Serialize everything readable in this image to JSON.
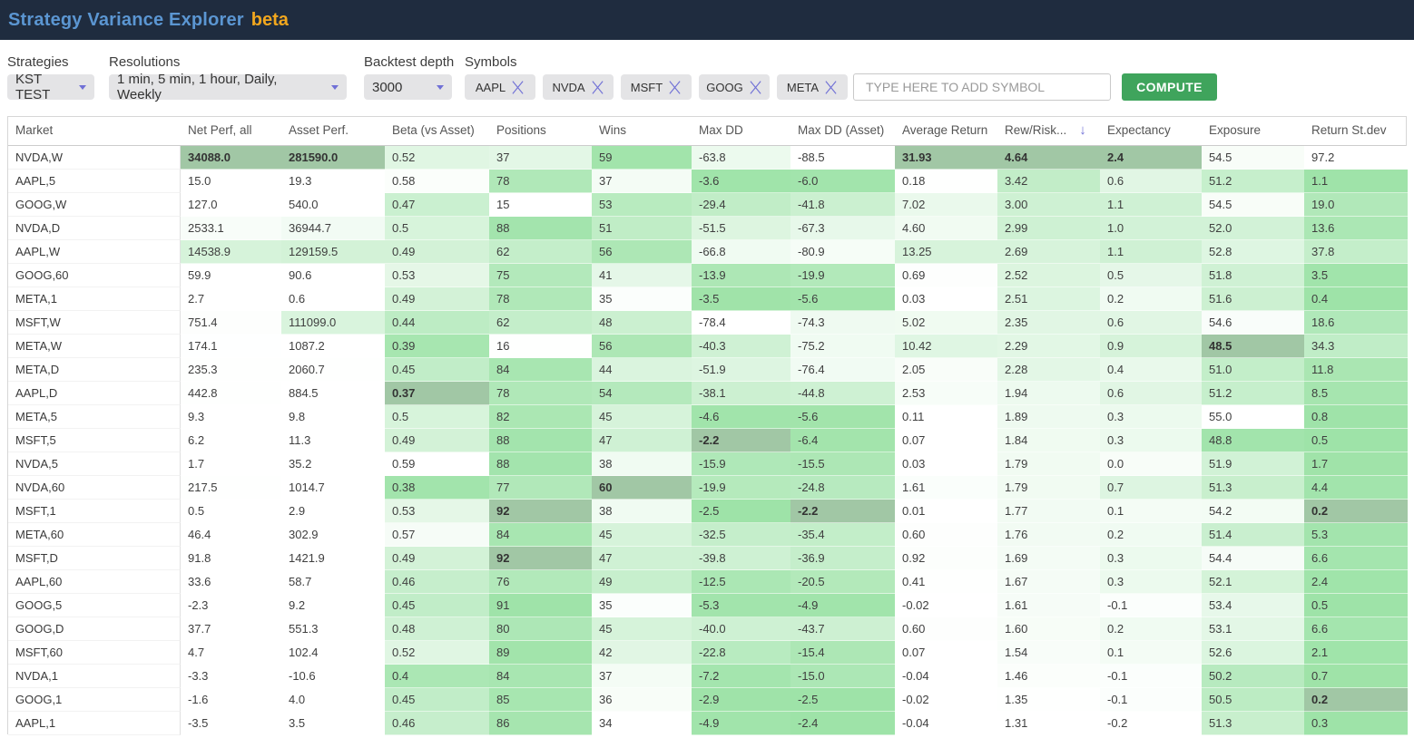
{
  "header": {
    "title": "Strategy Variance Explorer",
    "badge": "beta"
  },
  "controls": {
    "strategies_label": "Strategies",
    "strategies_value": "KST TEST",
    "resolutions_label": "Resolutions",
    "resolutions_value": "1 min, 5 min, 1 hour, Daily, Weekly",
    "backtest_label": "Backtest depth",
    "backtest_value": "3000",
    "symbols_label": "Symbols",
    "symbols": [
      "AAPL",
      "NVDA",
      "MSFT",
      "GOOG",
      "META"
    ],
    "add_symbol_placeholder": "TYPE HERE TO ADD SYMBOL",
    "compute_label": "COMPUTE"
  },
  "colors": {
    "topbar_bg": "#1f2c3f",
    "title_blue": "#5b96d2",
    "badge_orange": "#f2a71e",
    "accent_purple": "#7070d6",
    "compute_green": "#3fa45c",
    "heat_green_max": "#9ee3a8",
    "best_highlight": "#a1c7a5"
  },
  "table": {
    "columns": [
      {
        "key": "market",
        "label": "Market"
      },
      {
        "key": "net_perf",
        "label": "Net Perf, all",
        "better": "high"
      },
      {
        "key": "asset_perf",
        "label": "Asset Perf.",
        "better": "high"
      },
      {
        "key": "beta",
        "label": "Beta (vs Asset)",
        "better": "low"
      },
      {
        "key": "positions",
        "label": "Positions",
        "better": "high"
      },
      {
        "key": "wins",
        "label": "Wins",
        "better": "high"
      },
      {
        "key": "max_dd",
        "label": "Max DD",
        "better": "high"
      },
      {
        "key": "max_dd_asset",
        "label": "Max DD (Asset)",
        "better": "high"
      },
      {
        "key": "avg_return",
        "label": "Average Return",
        "better": "high"
      },
      {
        "key": "rew_risk",
        "label": "Rew/Risk...",
        "better": "high",
        "sorted": "desc"
      },
      {
        "key": "expectancy",
        "label": "Expectancy",
        "better": "high"
      },
      {
        "key": "exposure",
        "label": "Exposure",
        "better": "low"
      },
      {
        "key": "stdev",
        "label": "Return St.dev",
        "better": "low"
      }
    ],
    "rows": [
      {
        "market": "NVDA,W",
        "cells": [
          "34088.0",
          "281590.0",
          "0.52",
          "37",
          "59",
          "-63.8",
          "-88.5",
          "31.93",
          "4.64",
          "2.4",
          "54.5",
          "97.2"
        ]
      },
      {
        "market": "AAPL,5",
        "cells": [
          "15.0",
          "19.3",
          "0.58",
          "78",
          "37",
          "-3.6",
          "-6.0",
          "0.18",
          "3.42",
          "0.6",
          "51.2",
          "1.1"
        ]
      },
      {
        "market": "GOOG,W",
        "cells": [
          "127.0",
          "540.0",
          "0.47",
          "15",
          "53",
          "-29.4",
          "-41.8",
          "7.02",
          "3.00",
          "1.1",
          "54.5",
          "19.0"
        ]
      },
      {
        "market": "NVDA,D",
        "cells": [
          "2533.1",
          "36944.7",
          "0.5",
          "88",
          "51",
          "-51.5",
          "-67.3",
          "4.60",
          "2.99",
          "1.0",
          "52.0",
          "13.6"
        ]
      },
      {
        "market": "AAPL,W",
        "cells": [
          "14538.9",
          "129159.5",
          "0.49",
          "62",
          "56",
          "-66.8",
          "-80.9",
          "13.25",
          "2.69",
          "1.1",
          "52.8",
          "37.8"
        ]
      },
      {
        "market": "GOOG,60",
        "cells": [
          "59.9",
          "90.6",
          "0.53",
          "75",
          "41",
          "-13.9",
          "-19.9",
          "0.69",
          "2.52",
          "0.5",
          "51.8",
          "3.5"
        ]
      },
      {
        "market": "META,1",
        "cells": [
          "2.7",
          "0.6",
          "0.49",
          "78",
          "35",
          "-3.5",
          "-5.6",
          "0.03",
          "2.51",
          "0.2",
          "51.6",
          "0.4"
        ]
      },
      {
        "market": "MSFT,W",
        "cells": [
          "751.4",
          "111099.0",
          "0.44",
          "62",
          "48",
          "-78.4",
          "-74.3",
          "5.02",
          "2.35",
          "0.6",
          "54.6",
          "18.6"
        ]
      },
      {
        "market": "META,W",
        "cells": [
          "174.1",
          "1087.2",
          "0.39",
          "16",
          "56",
          "-40.3",
          "-75.2",
          "10.42",
          "2.29",
          "0.9",
          "48.5",
          "34.3"
        ]
      },
      {
        "market": "META,D",
        "cells": [
          "235.3",
          "2060.7",
          "0.45",
          "84",
          "44",
          "-51.9",
          "-76.4",
          "2.05",
          "2.28",
          "0.4",
          "51.0",
          "11.8"
        ]
      },
      {
        "market": "AAPL,D",
        "cells": [
          "442.8",
          "884.5",
          "0.37",
          "78",
          "54",
          "-38.1",
          "-44.8",
          "2.53",
          "1.94",
          "0.6",
          "51.2",
          "8.5"
        ]
      },
      {
        "market": "META,5",
        "cells": [
          "9.3",
          "9.8",
          "0.5",
          "82",
          "45",
          "-4.6",
          "-5.6",
          "0.11",
          "1.89",
          "0.3",
          "55.0",
          "0.8"
        ]
      },
      {
        "market": "MSFT,5",
        "cells": [
          "6.2",
          "11.3",
          "0.49",
          "88",
          "47",
          "-2.2",
          "-6.4",
          "0.07",
          "1.84",
          "0.3",
          "48.8",
          "0.5"
        ]
      },
      {
        "market": "NVDA,5",
        "cells": [
          "1.7",
          "35.2",
          "0.59",
          "88",
          "38",
          "-15.9",
          "-15.5",
          "0.03",
          "1.79",
          "0.0",
          "51.9",
          "1.7"
        ]
      },
      {
        "market": "NVDA,60",
        "cells": [
          "217.5",
          "1014.7",
          "0.38",
          "77",
          "60",
          "-19.9",
          "-24.8",
          "1.61",
          "1.79",
          "0.7",
          "51.3",
          "4.4"
        ]
      },
      {
        "market": "MSFT,1",
        "cells": [
          "0.5",
          "2.9",
          "0.53",
          "92",
          "38",
          "-2.5",
          "-2.2",
          "0.01",
          "1.77",
          "0.1",
          "54.2",
          "0.2"
        ]
      },
      {
        "market": "META,60",
        "cells": [
          "46.4",
          "302.9",
          "0.57",
          "84",
          "45",
          "-32.5",
          "-35.4",
          "0.60",
          "1.76",
          "0.2",
          "51.4",
          "5.3"
        ]
      },
      {
        "market": "MSFT,D",
        "cells": [
          "91.8",
          "1421.9",
          "0.49",
          "92",
          "47",
          "-39.8",
          "-36.9",
          "0.92",
          "1.69",
          "0.3",
          "54.4",
          "6.6"
        ]
      },
      {
        "market": "AAPL,60",
        "cells": [
          "33.6",
          "58.7",
          "0.46",
          "76",
          "49",
          "-12.5",
          "-20.5",
          "0.41",
          "1.67",
          "0.3",
          "52.1",
          "2.4"
        ]
      },
      {
        "market": "GOOG,5",
        "cells": [
          "-2.3",
          "9.2",
          "0.45",
          "91",
          "35",
          "-5.3",
          "-4.9",
          "-0.02",
          "1.61",
          "-0.1",
          "53.4",
          "0.5"
        ]
      },
      {
        "market": "GOOG,D",
        "cells": [
          "37.7",
          "551.3",
          "0.48",
          "80",
          "45",
          "-40.0",
          "-43.7",
          "0.60",
          "1.60",
          "0.2",
          "53.1",
          "6.6"
        ]
      },
      {
        "market": "MSFT,60",
        "cells": [
          "4.7",
          "102.4",
          "0.52",
          "89",
          "42",
          "-22.8",
          "-15.4",
          "0.07",
          "1.54",
          "0.1",
          "52.6",
          "2.1"
        ]
      },
      {
        "market": "NVDA,1",
        "cells": [
          "-3.3",
          "-10.6",
          "0.4",
          "84",
          "37",
          "-7.2",
          "-15.0",
          "-0.04",
          "1.46",
          "-0.1",
          "50.2",
          "0.7"
        ]
      },
      {
        "market": "GOOG,1",
        "cells": [
          "-1.6",
          "4.0",
          "0.45",
          "85",
          "36",
          "-2.9",
          "-2.5",
          "-0.02",
          "1.35",
          "-0.1",
          "50.5",
          "0.2"
        ]
      },
      {
        "market": "AAPL,1",
        "cells": [
          "-3.5",
          "3.5",
          "0.46",
          "86",
          "34",
          "-4.9",
          "-2.4",
          "-0.04",
          "1.31",
          "-0.2",
          "51.3",
          "0.3"
        ]
      }
    ]
  }
}
